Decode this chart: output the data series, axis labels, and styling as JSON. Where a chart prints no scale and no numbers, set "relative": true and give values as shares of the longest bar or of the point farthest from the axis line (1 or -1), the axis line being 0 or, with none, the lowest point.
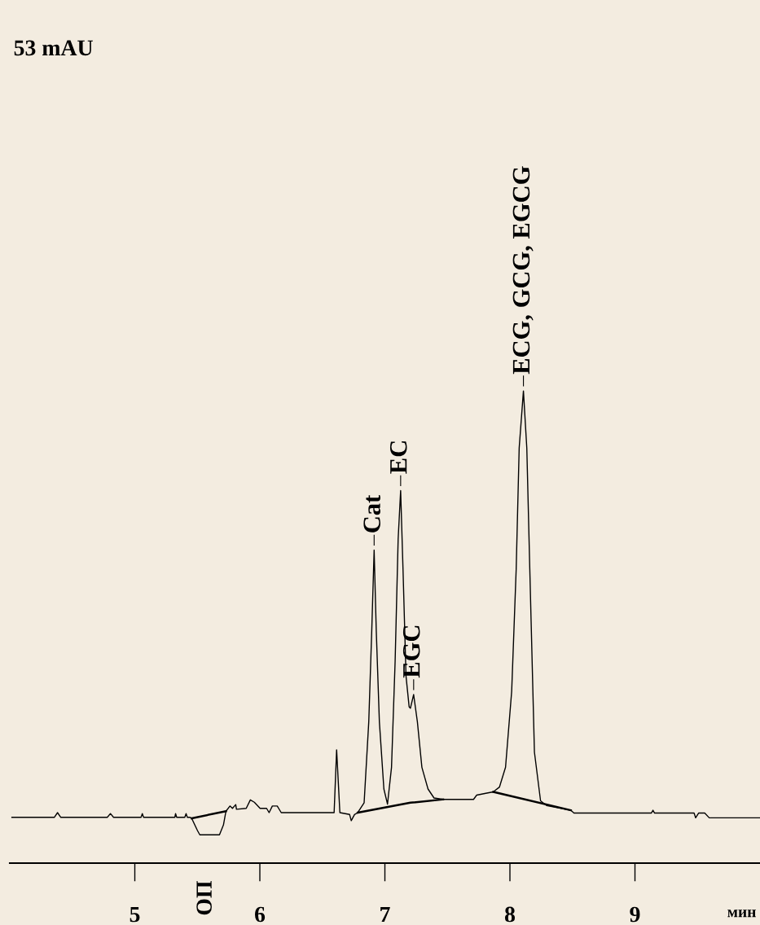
{
  "chart_data": {
    "type": "line",
    "relative": true,
    "xlabel": "мин",
    "xlim": [
      4.0,
      10.0
    ],
    "xticks": [
      5,
      6,
      7,
      8,
      9
    ],
    "tick_labels": "x",
    "grid": false,
    "line_style": "solid",
    "marker": "none",
    "series": [
      {
        "color": "#000000",
        "x": [
          4.017,
          4.356,
          4.382,
          4.408,
          4.78,
          4.805,
          4.83,
          5.05,
          5.06,
          5.07,
          5.32,
          5.326,
          5.335,
          5.4,
          5.41,
          5.42,
          5.442,
          5.455,
          5.501,
          5.52,
          5.677,
          5.709,
          5.729,
          5.761,
          5.781,
          5.807,
          5.813,
          5.891,
          5.924,
          5.956,
          6.002,
          6.054,
          6.074,
          6.1,
          6.139,
          6.171,
          6.594,
          6.614,
          6.64,
          6.718,
          6.731,
          6.757,
          6.783,
          6.834,
          6.871,
          6.895,
          6.914,
          6.931,
          6.956,
          6.992,
          7.021,
          7.053,
          7.082,
          7.106,
          7.126,
          7.145,
          7.169,
          7.194,
          7.204,
          7.23,
          7.26,
          7.296,
          7.345,
          7.393,
          7.466,
          7.709,
          7.734,
          7.807,
          7.867,
          7.916,
          7.965,
          8.014,
          8.05,
          8.074,
          8.108,
          8.135,
          8.159,
          8.196,
          8.245,
          8.293,
          8.487,
          8.512,
          9.131,
          9.144,
          9.157,
          9.473,
          9.485,
          9.509,
          9.558,
          9.594,
          9.619,
          10.0
        ],
        "values": [
          0.097,
          0.097,
          0.107,
          0.097,
          0.097,
          0.105,
          0.097,
          0.097,
          0.105,
          0.097,
          0.097,
          0.105,
          0.097,
          0.097,
          0.105,
          0.097,
          0.097,
          0.095,
          0.069,
          0.06,
          0.06,
          0.081,
          0.11,
          0.121,
          0.116,
          0.124,
          0.114,
          0.116,
          0.134,
          0.129,
          0.116,
          0.116,
          0.107,
          0.121,
          0.121,
          0.107,
          0.107,
          0.24,
          0.107,
          0.103,
          0.09,
          0.103,
          0.107,
          0.128,
          0.299,
          0.493,
          0.663,
          0.493,
          0.299,
          0.157,
          0.125,
          0.203,
          0.428,
          0.686,
          0.789,
          0.622,
          0.396,
          0.331,
          0.328,
          0.357,
          0.299,
          0.203,
          0.157,
          0.138,
          0.135,
          0.135,
          0.144,
          0.148,
          0.151,
          0.161,
          0.203,
          0.364,
          0.622,
          0.879,
          1.0,
          0.879,
          0.622,
          0.235,
          0.132,
          0.122,
          0.112,
          0.106,
          0.106,
          0.112,
          0.106,
          0.106,
          0.096,
          0.106,
          0.106,
          0.096,
          0.096,
          0.096
        ]
      },
      {
        "color": "#000000",
        "x": [
          5.455,
          5.729
        ],
        "values": [
          0.095,
          0.11
        ]
      },
      {
        "color": "#000000",
        "x": [
          6.783,
          7.204,
          7.466
        ],
        "values": [
          0.107,
          0.128,
          0.135
        ]
      },
      {
        "color": "#000000",
        "x": [
          7.867,
          8.487
        ],
        "values": [
          0.151,
          0.112
        ]
      }
    ],
    "annotations": [
      {
        "text": "Cat",
        "x": 6.914,
        "y": 0.663
      },
      {
        "text": "EC",
        "x": 7.126,
        "y": 0.789
      },
      {
        "text": "EGC",
        "x": 7.23,
        "y": 0.357
      },
      {
        "text": "ECG, GCG, EGCG",
        "x": 8.108,
        "y": 1.0
      },
      "53 mAU",
      "ОП"
    ]
  }
}
